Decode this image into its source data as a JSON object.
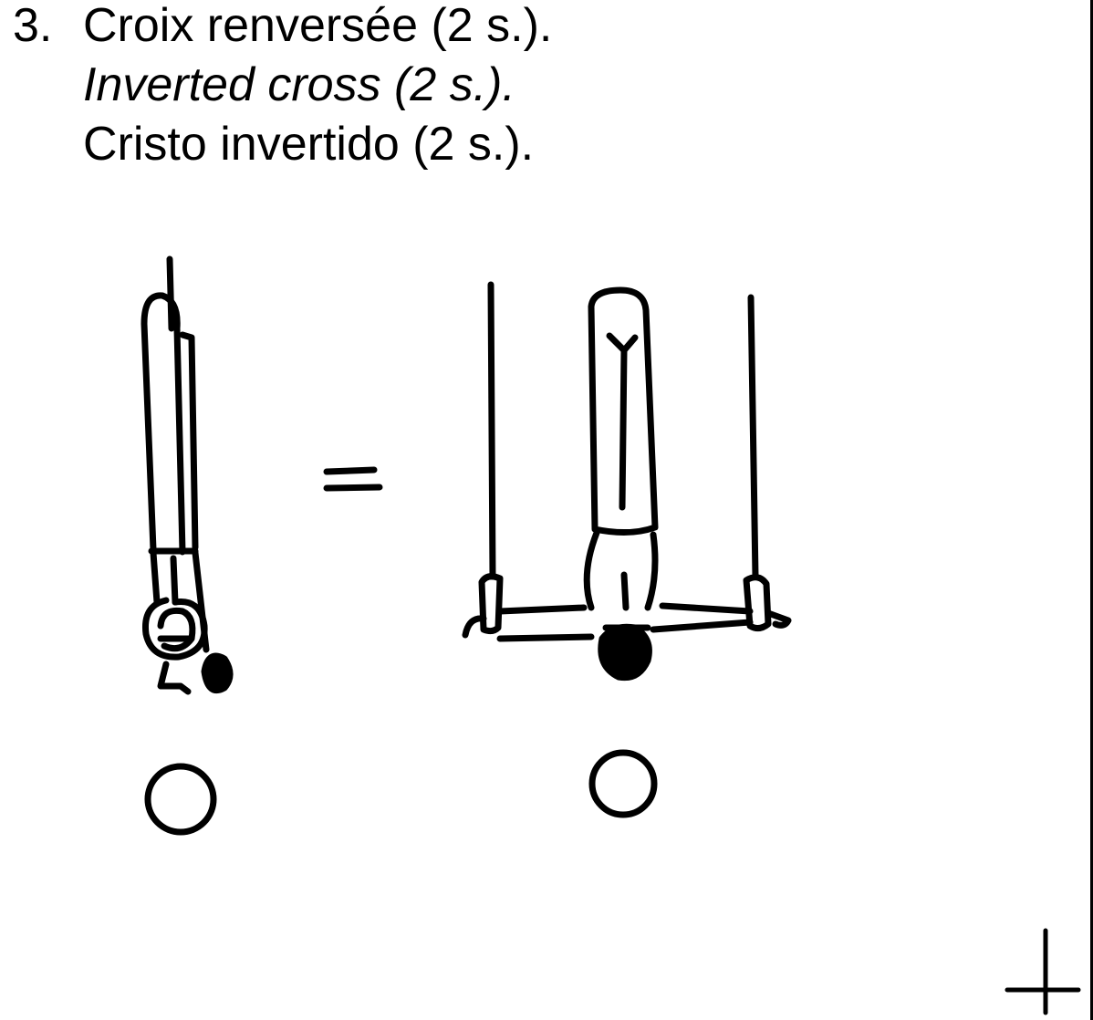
{
  "element": {
    "number": "3.",
    "name_fr": "Croix renversée (2 s.).",
    "name_en": "Inverted cross (2 s.).",
    "name_es": "Cristo invertido (2 s.)."
  },
  "figures": {
    "side_view": "gymnast-side-view-inverted",
    "equals": "equals-sign",
    "front_view": "gymnast-front-view-inverted-cross",
    "marker_left": "circle-marker",
    "marker_right": "circle-marker",
    "corner_mark": "plus-mark"
  }
}
